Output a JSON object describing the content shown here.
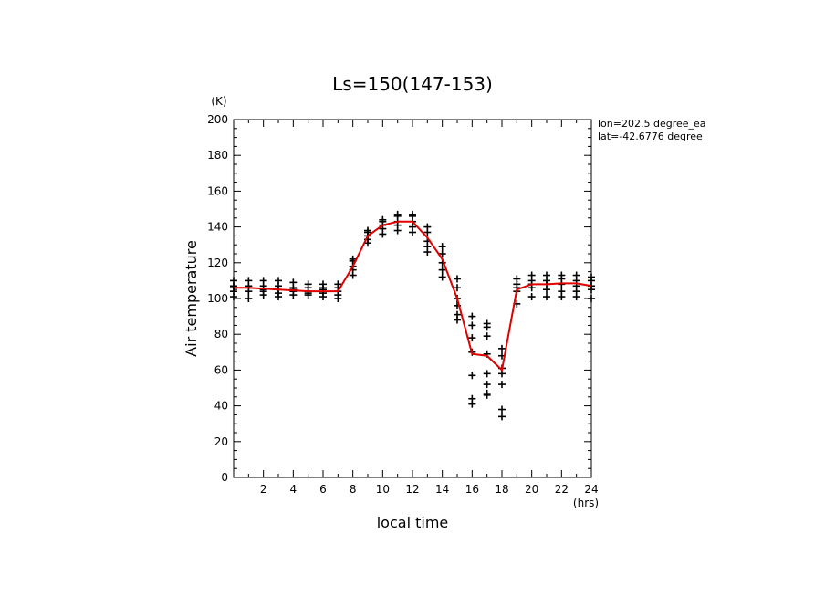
{
  "chart_data": {
    "type": "scatter",
    "title": "Ls=150(147-153)",
    "xlabel": "local time",
    "ylabel": "Air temperature",
    "x_unit": "(hrs)",
    "y_unit": "(K)",
    "xlim": [
      0,
      24
    ],
    "ylim": [
      0,
      200
    ],
    "x_ticks": [
      2,
      4,
      6,
      8,
      10,
      12,
      14,
      16,
      18,
      20,
      22,
      24
    ],
    "y_ticks": [
      0,
      20,
      40,
      60,
      80,
      100,
      120,
      140,
      160,
      180,
      200
    ],
    "annotations": [
      "lon=202.5 degree_ea",
      "lat=-42.6776 degree"
    ],
    "grid": false,
    "series": [
      {
        "name": "samples",
        "marker": "+",
        "points": [
          [
            0,
            101
          ],
          [
            0,
            104
          ],
          [
            0,
            106
          ],
          [
            0,
            107
          ],
          [
            0,
            110
          ],
          [
            1,
            100
          ],
          [
            1,
            104
          ],
          [
            1,
            106
          ],
          [
            1,
            107
          ],
          [
            1,
            110
          ],
          [
            2,
            102
          ],
          [
            2,
            104
          ],
          [
            2,
            105
          ],
          [
            2,
            107
          ],
          [
            2,
            110
          ],
          [
            3,
            101
          ],
          [
            3,
            103
          ],
          [
            3,
            105
          ],
          [
            3,
            107
          ],
          [
            3,
            110
          ],
          [
            4,
            102
          ],
          [
            4,
            104
          ],
          [
            4,
            105
          ],
          [
            4,
            106
          ],
          [
            4,
            109
          ],
          [
            5,
            102
          ],
          [
            5,
            103
          ],
          [
            5,
            104
          ],
          [
            5,
            106
          ],
          [
            5,
            108
          ],
          [
            6,
            101
          ],
          [
            6,
            103
          ],
          [
            6,
            105
          ],
          [
            6,
            106
          ],
          [
            6,
            108
          ],
          [
            7,
            100
          ],
          [
            7,
            102
          ],
          [
            7,
            104
          ],
          [
            7,
            106
          ],
          [
            7,
            108
          ],
          [
            8,
            113
          ],
          [
            8,
            116
          ],
          [
            8,
            118
          ],
          [
            8,
            121
          ],
          [
            8,
            122
          ],
          [
            9,
            131
          ],
          [
            9,
            133
          ],
          [
            9,
            135
          ],
          [
            9,
            137
          ],
          [
            9,
            138
          ],
          [
            10,
            136
          ],
          [
            10,
            139
          ],
          [
            10,
            141
          ],
          [
            10,
            143
          ],
          [
            10,
            144
          ],
          [
            11,
            138
          ],
          [
            11,
            141
          ],
          [
            11,
            143
          ],
          [
            11,
            146
          ],
          [
            11,
            147
          ],
          [
            12,
            137
          ],
          [
            12,
            140
          ],
          [
            12,
            143
          ],
          [
            12,
            146
          ],
          [
            12,
            147
          ],
          [
            13,
            126
          ],
          [
            13,
            129
          ],
          [
            13,
            132
          ],
          [
            13,
            137
          ],
          [
            13,
            140
          ],
          [
            14,
            112
          ],
          [
            14,
            116
          ],
          [
            14,
            120
          ],
          [
            14,
            125
          ],
          [
            14,
            129
          ],
          [
            15,
            88
          ],
          [
            15,
            91
          ],
          [
            15,
            96
          ],
          [
            15,
            100
          ],
          [
            15,
            106
          ],
          [
            15,
            111
          ],
          [
            16,
            41
          ],
          [
            16,
            44
          ],
          [
            16,
            57
          ],
          [
            16,
            70
          ],
          [
            16,
            78
          ],
          [
            16,
            85
          ],
          [
            16,
            90
          ],
          [
            17,
            46
          ],
          [
            17,
            47
          ],
          [
            17,
            52
          ],
          [
            17,
            58
          ],
          [
            17,
            69
          ],
          [
            17,
            79
          ],
          [
            17,
            84
          ],
          [
            17,
            86
          ],
          [
            18,
            34
          ],
          [
            18,
            38
          ],
          [
            18,
            52
          ],
          [
            18,
            58
          ],
          [
            18,
            61
          ],
          [
            18,
            68
          ],
          [
            18,
            72
          ],
          [
            19,
            97
          ],
          [
            19,
            104
          ],
          [
            19,
            106
          ],
          [
            19,
            108
          ],
          [
            19,
            111
          ],
          [
            20,
            101
          ],
          [
            20,
            106
          ],
          [
            20,
            108
          ],
          [
            20,
            110
          ],
          [
            20,
            113
          ],
          [
            21,
            101
          ],
          [
            21,
            105
          ],
          [
            21,
            108
          ],
          [
            21,
            110
          ],
          [
            21,
            113
          ],
          [
            22,
            101
          ],
          [
            22,
            104
          ],
          [
            22,
            108
          ],
          [
            22,
            111
          ],
          [
            22,
            113
          ],
          [
            23,
            101
          ],
          [
            23,
            104
          ],
          [
            23,
            107
          ],
          [
            23,
            110
          ],
          [
            23,
            113
          ],
          [
            24,
            100
          ],
          [
            24,
            105
          ],
          [
            24,
            107
          ],
          [
            24,
            110
          ],
          [
            24,
            112
          ]
        ]
      },
      {
        "name": "mean",
        "type": "line",
        "color": "#e00000",
        "x": [
          0,
          1,
          2,
          3,
          4,
          5,
          6,
          7,
          8,
          9,
          10,
          11,
          12,
          13,
          14,
          15,
          16,
          17,
          18,
          19,
          20,
          21,
          22,
          23,
          24
        ],
        "y": [
          106,
          106,
          105.5,
          105,
          104.5,
          104,
          104,
          104,
          118,
          135,
          141,
          143,
          143,
          134,
          122,
          100,
          69,
          68,
          60,
          105,
          108,
          108,
          108.5,
          108.5,
          107
        ]
      }
    ]
  }
}
